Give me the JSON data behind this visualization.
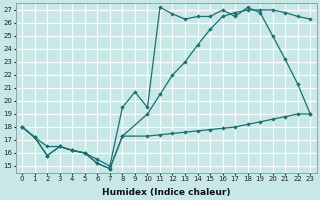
{
  "background_color": "#c8e8e8",
  "grid_color": "#ffffff",
  "line_color": "#1a7070",
  "xlabel": "Humidex (Indice chaleur)",
  "xlim": [
    -0.5,
    23.5
  ],
  "ylim": [
    14.5,
    27.5
  ],
  "yticks": [
    15,
    16,
    17,
    18,
    19,
    20,
    21,
    22,
    23,
    24,
    25,
    26,
    27
  ],
  "xticks": [
    0,
    1,
    2,
    3,
    4,
    5,
    6,
    7,
    8,
    9,
    10,
    11,
    12,
    13,
    14,
    15,
    16,
    17,
    18,
    19,
    20,
    21,
    22,
    23
  ],
  "series1_x": [
    0,
    1,
    2,
    3,
    4,
    5,
    6,
    7,
    8,
    10,
    11,
    12,
    13,
    14,
    15,
    16,
    17,
    18,
    19,
    20,
    21,
    22,
    23
  ],
  "series1_y": [
    18.0,
    17.2,
    15.8,
    16.5,
    16.2,
    16.0,
    15.2,
    14.8,
    17.3,
    17.3,
    17.4,
    17.5,
    17.6,
    17.7,
    17.8,
    17.9,
    18.0,
    18.2,
    18.4,
    18.6,
    18.8,
    19.0,
    19.0
  ],
  "series2_x": [
    0,
    1,
    2,
    3,
    4,
    5,
    6,
    7,
    8,
    10,
    11,
    12,
    13,
    14,
    15,
    16,
    17,
    18,
    19,
    20,
    21,
    22,
    23
  ],
  "series2_y": [
    18.0,
    17.2,
    15.8,
    16.5,
    16.2,
    16.0,
    15.2,
    14.8,
    17.3,
    19.0,
    20.5,
    22.0,
    23.0,
    24.3,
    25.5,
    26.5,
    26.8,
    27.0,
    27.0,
    27.0,
    26.8,
    26.5,
    26.3
  ],
  "series3_x": [
    0,
    1,
    2,
    3,
    4,
    5,
    6,
    7,
    8,
    9,
    10,
    11,
    12,
    13,
    14,
    15,
    16,
    17,
    18,
    19,
    20,
    21,
    22,
    23
  ],
  "series3_y": [
    18.0,
    17.2,
    16.5,
    16.5,
    16.2,
    16.0,
    15.5,
    15.0,
    19.5,
    20.7,
    19.5,
    27.2,
    26.7,
    26.3,
    26.5,
    26.5,
    27.0,
    26.5,
    27.2,
    26.8,
    25.0,
    23.2,
    21.3,
    19.0
  ]
}
